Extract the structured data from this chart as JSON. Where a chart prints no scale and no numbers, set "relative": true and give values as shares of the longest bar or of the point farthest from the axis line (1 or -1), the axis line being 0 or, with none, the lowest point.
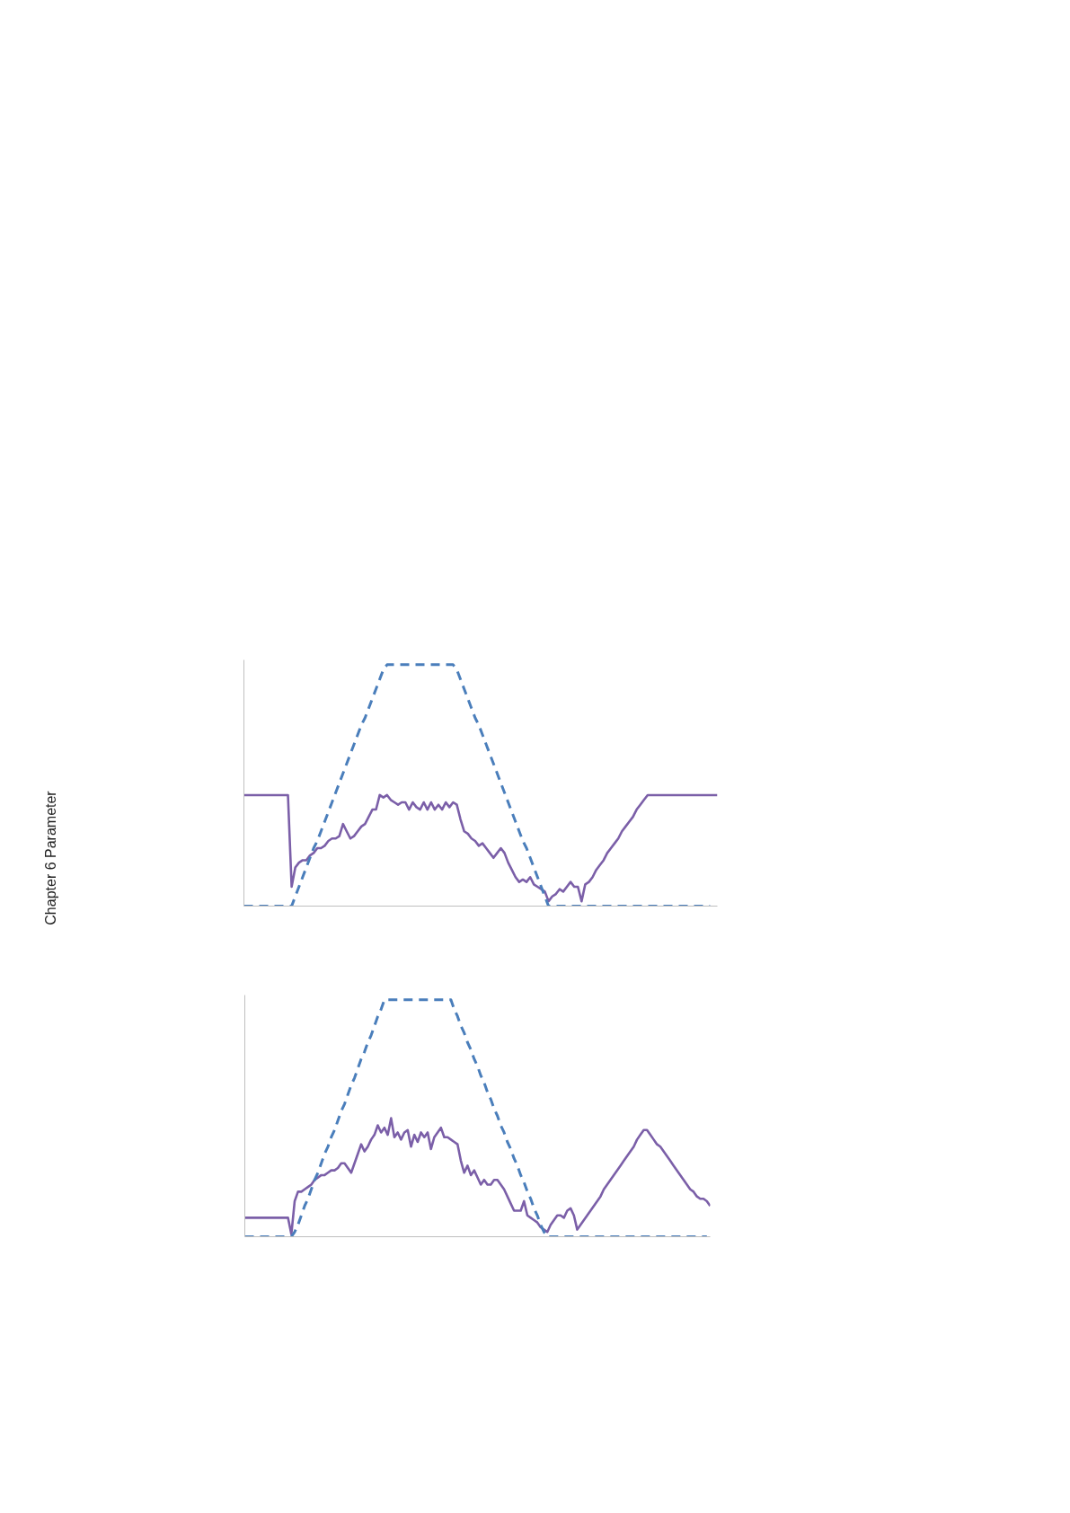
{
  "chart_data": [
    {
      "type": "line",
      "relative": true,
      "annotations": [
        "Chapter 6 Parameter"
      ],
      "categories": [
        null,
        null,
        null,
        null,
        null,
        null,
        null,
        null,
        null,
        null,
        null,
        null,
        null,
        null,
        null,
        null,
        null,
        null,
        null,
        null,
        null,
        null,
        null,
        null,
        null,
        null,
        null,
        null,
        null,
        null,
        null,
        null,
        null,
        null,
        null,
        null,
        null,
        null,
        null,
        null,
        null,
        null,
        null,
        null,
        null,
        null,
        null,
        null,
        null,
        null,
        null,
        null,
        null,
        null,
        null,
        null,
        null,
        null,
        null,
        null,
        null,
        null,
        null,
        null,
        null,
        null,
        null,
        null,
        null,
        null,
        null,
        null,
        null,
        null,
        null,
        null,
        null,
        null,
        null,
        null,
        null,
        null,
        null,
        null,
        null,
        null,
        null,
        null,
        null,
        null,
        null,
        null,
        null,
        null,
        null,
        null,
        null,
        null,
        null,
        null,
        null,
        null,
        null,
        null,
        null,
        null,
        null,
        null,
        null,
        null,
        null,
        null,
        null,
        null,
        null,
        null,
        null,
        null,
        null,
        null,
        null,
        null,
        null,
        null,
        null,
        null,
        null,
        null,
        null,
        null
      ],
      "series": [
        {
          "color": "#7b5fa8",
          "line_style": "solid",
          "values": [
            0.46,
            0.46,
            0.46,
            0.46,
            0.46,
            0.46,
            0.46,
            0.46,
            0.46,
            0.46,
            0.46,
            0.46,
            0.46,
            0.08,
            0.16,
            0.18,
            0.19,
            0.19,
            0.21,
            0.22,
            0.24,
            0.24,
            0.25,
            0.27,
            0.28,
            0.28,
            0.29,
            0.34,
            0.31,
            0.28,
            0.29,
            0.31,
            0.33,
            0.34,
            0.37,
            0.4,
            0.4,
            0.46,
            0.45,
            0.46,
            0.44,
            0.43,
            0.42,
            0.43,
            0.43,
            0.4,
            0.43,
            0.41,
            0.4,
            0.43,
            0.4,
            0.43,
            0.4,
            0.42,
            0.4,
            0.43,
            0.41,
            0.43,
            0.42,
            0.36,
            0.31,
            0.3,
            0.28,
            0.27,
            0.25,
            0.26,
            0.24,
            0.22,
            0.2,
            0.22,
            0.24,
            0.22,
            0.18,
            0.15,
            0.12,
            0.1,
            0.11,
            0.1,
            0.12,
            0.09,
            0.08,
            0.07,
            0.06,
            0.02,
            0.04,
            0.05,
            0.07,
            0.06,
            0.08,
            0.1,
            0.08,
            0.08,
            0.02,
            0.09,
            0.1,
            0.12,
            0.15,
            0.17,
            0.19,
            0.22,
            0.24,
            0.26,
            0.28,
            0.31,
            0.33,
            0.35,
            0.37,
            0.4,
            0.42,
            0.44,
            0.46,
            0.46,
            0.46,
            0.46,
            0.46,
            0.46,
            0.46,
            0.46,
            0.46,
            0.46,
            0.46,
            0.46,
            0.46,
            0.46,
            0.46,
            0.46,
            0.46,
            0.46,
            0.46,
            0.46
          ]
        },
        {
          "color": "#4a7ebb",
          "line_style": "dashed",
          "values": [
            0,
            0,
            0,
            0,
            0,
            0,
            0,
            0,
            0,
            0,
            0,
            0,
            0,
            0,
            0.04,
            0.08,
            0.12,
            0.16,
            0.2,
            0.24,
            0.27,
            0.31,
            0.35,
            0.39,
            0.43,
            0.47,
            0.51,
            0.55,
            0.59,
            0.63,
            0.67,
            0.71,
            0.75,
            0.78,
            0.82,
            0.86,
            0.9,
            0.94,
            0.98,
            1,
            1,
            1,
            1,
            1,
            1,
            1,
            1,
            1,
            1,
            1,
            1,
            1,
            1,
            1,
            1,
            1,
            1,
            1,
            0.98,
            0.94,
            0.9,
            0.86,
            0.82,
            0.78,
            0.75,
            0.71,
            0.67,
            0.63,
            0.59,
            0.55,
            0.51,
            0.47,
            0.43,
            0.39,
            0.35,
            0.31,
            0.27,
            0.24,
            0.2,
            0.16,
            0.12,
            0.08,
            0.04,
            0,
            0,
            0,
            0,
            0,
            0,
            0,
            0,
            0,
            0,
            0,
            0,
            0,
            0,
            0,
            0,
            0,
            0,
            0,
            0,
            0,
            0,
            0,
            0,
            0,
            0,
            0,
            0,
            0,
            0,
            0,
            0,
            0,
            0,
            0,
            0,
            0,
            0,
            0,
            0,
            0,
            0,
            0,
            0,
            0,
            null,
            null
          ]
        }
      ]
    },
    {
      "type": "line",
      "relative": true,
      "categories": [
        null,
        null,
        null,
        null,
        null,
        null,
        null,
        null,
        null,
        null,
        null,
        null,
        null,
        null,
        null,
        null,
        null,
        null,
        null,
        null,
        null,
        null,
        null,
        null,
        null,
        null,
        null,
        null,
        null,
        null,
        null,
        null,
        null,
        null,
        null,
        null,
        null,
        null,
        null,
        null,
        null,
        null,
        null,
        null,
        null,
        null,
        null,
        null,
        null,
        null,
        null,
        null,
        null,
        null,
        null,
        null,
        null,
        null,
        null,
        null,
        null,
        null,
        null,
        null,
        null,
        null,
        null,
        null,
        null,
        null,
        null,
        null,
        null,
        null,
        null,
        null,
        null,
        null,
        null,
        null,
        null,
        null,
        null,
        null,
        null,
        null,
        null,
        null,
        null,
        null,
        null,
        null,
        null,
        null,
        null,
        null,
        null,
        null,
        null,
        null,
        null,
        null,
        null,
        null,
        null,
        null,
        null,
        null,
        null,
        null,
        null,
        null,
        null,
        null,
        null,
        null,
        null,
        null,
        null,
        null,
        null,
        null,
        null,
        null,
        null,
        null,
        null,
        null,
        null,
        null,
        null,
        null,
        null,
        null,
        null,
        null,
        null,
        null,
        null,
        null,
        null
      ],
      "series": [
        {
          "color": "#7b5fa8",
          "line_style": "solid",
          "values": [
            0.08,
            0.08,
            0.08,
            0.08,
            0.08,
            0.08,
            0.08,
            0.08,
            0.08,
            0.08,
            0.08,
            0.08,
            0.08,
            0.08,
            0.01,
            0.15,
            0.19,
            0.19,
            0.2,
            0.21,
            0.22,
            0.24,
            0.25,
            0.26,
            0.26,
            0.27,
            0.28,
            0.28,
            0.29,
            0.31,
            0.31,
            0.29,
            0.27,
            0.31,
            0.35,
            0.39,
            0.36,
            0.38,
            0.41,
            0.43,
            0.47,
            0.44,
            0.46,
            0.43,
            0.5,
            0.42,
            0.44,
            0.41,
            0.44,
            0.45,
            0.38,
            0.43,
            0.4,
            0.44,
            0.42,
            0.44,
            0.37,
            0.42,
            0.44,
            0.46,
            0.42,
            0.42,
            0.41,
            0.4,
            0.39,
            0.32,
            0.27,
            0.3,
            0.26,
            0.28,
            0.25,
            0.22,
            0.24,
            0.22,
            0.22,
            0.24,
            0.24,
            0.22,
            0.2,
            0.17,
            0.14,
            0.11,
            0.11,
            0.11,
            0.15,
            0.09,
            0.08,
            0.07,
            0.06,
            0.04,
            0.03,
            0.02,
            0.05,
            0.07,
            0.09,
            0.09,
            0.08,
            0.11,
            0.12,
            0.09,
            0.03,
            0.05,
            0.07,
            0.09,
            0.11,
            0.13,
            0.15,
            0.17,
            0.2,
            0.22,
            0.24,
            0.26,
            0.28,
            0.3,
            0.32,
            0.34,
            0.36,
            0.38,
            0.41,
            0.43,
            0.45,
            0.45,
            0.43,
            0.41,
            0.39,
            0.38,
            0.36,
            0.34,
            0.32,
            0.3,
            0.28,
            0.26,
            0.24,
            0.22,
            0.2,
            0.19,
            0.17,
            0.16,
            0.16,
            0.15,
            0.13
          ]
        },
        {
          "color": "#4a7ebb",
          "line_style": "dashed",
          "values": [
            0,
            0,
            0,
            0,
            0,
            0,
            0,
            0,
            0,
            0,
            0,
            0,
            0,
            0,
            0,
            0.02,
            0.05,
            0.09,
            0.13,
            0.16,
            0.2,
            0.24,
            0.27,
            0.31,
            0.35,
            0.38,
            0.42,
            0.45,
            0.49,
            0.53,
            0.56,
            0.6,
            0.64,
            0.67,
            0.71,
            0.75,
            0.78,
            0.82,
            0.85,
            0.89,
            0.93,
            0.96,
            1,
            1,
            1,
            1,
            1,
            1,
            1,
            1,
            1,
            1,
            1,
            1,
            1,
            1,
            1,
            1,
            1,
            1,
            1,
            1,
            1,
            0.96,
            0.93,
            0.89,
            0.86,
            0.82,
            0.79,
            0.75,
            0.72,
            0.68,
            0.65,
            0.61,
            0.58,
            0.54,
            0.51,
            0.47,
            0.44,
            0.4,
            0.37,
            0.33,
            0.3,
            0.26,
            0.23,
            0.19,
            0.16,
            0.12,
            0.09,
            0.05,
            0.02,
            0,
            0,
            0,
            0,
            0,
            0,
            0,
            0,
            0,
            0,
            0,
            0,
            0,
            0,
            0,
            0,
            0,
            0,
            0,
            0,
            0,
            0,
            0,
            0,
            0,
            0,
            0,
            0,
            0,
            0,
            0,
            0,
            0,
            0,
            0,
            0,
            0,
            0,
            0,
            0,
            0,
            0,
            0,
            0,
            0,
            0,
            0,
            0,
            0,
            null
          ]
        }
      ]
    }
  ]
}
